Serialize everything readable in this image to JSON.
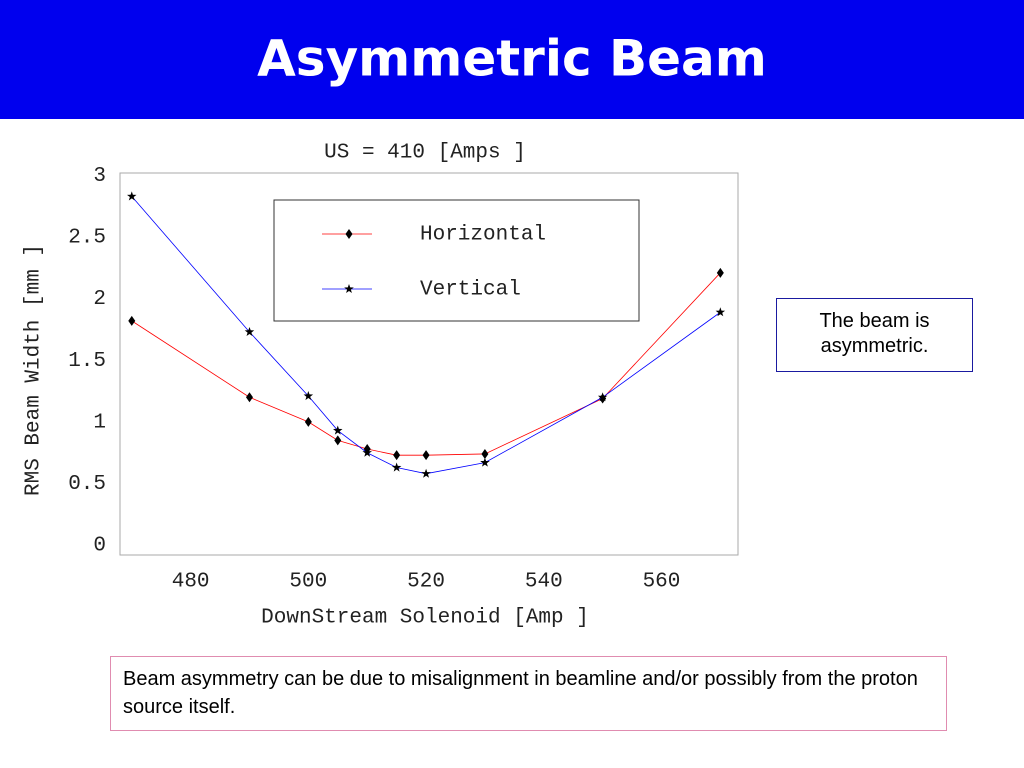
{
  "slide": {
    "title": "Asymmetric Beam",
    "callout": "The beam is asymmetric.",
    "note": "Beam asymmetry can be due to misalignment in beamline and/or possibly from the proton source itself."
  },
  "chart_data": {
    "type": "line",
    "title": "US = 410 [Amps ]",
    "x_label": "DownStream Solenoid [Amp ]",
    "y_label": "RMS Beam Width [mm ]",
    "x": [
      470,
      490,
      500,
      505,
      510,
      515,
      520,
      530,
      550,
      570
    ],
    "series": [
      {
        "name": "Horizontal",
        "color": "#ff0000",
        "marker": "diamond",
        "values": [
          1.82,
          1.2,
          1.0,
          0.85,
          0.78,
          0.73,
          0.73,
          0.74,
          1.19,
          2.21
        ]
      },
      {
        "name": "Vertical",
        "color": "#0000ff",
        "marker": "star",
        "values": [
          2.83,
          1.73,
          1.21,
          0.93,
          0.75,
          0.63,
          0.58,
          0.67,
          1.2,
          1.89
        ]
      }
    ],
    "xlim": [
      468,
      573
    ],
    "ylim": [
      -0.08,
      3.02
    ],
    "xticks": [
      480,
      500,
      520,
      540,
      560
    ],
    "yticks": [
      0,
      0.5,
      1,
      1.5,
      2,
      2.5,
      3
    ],
    "grid": false,
    "legend": "upper center"
  }
}
